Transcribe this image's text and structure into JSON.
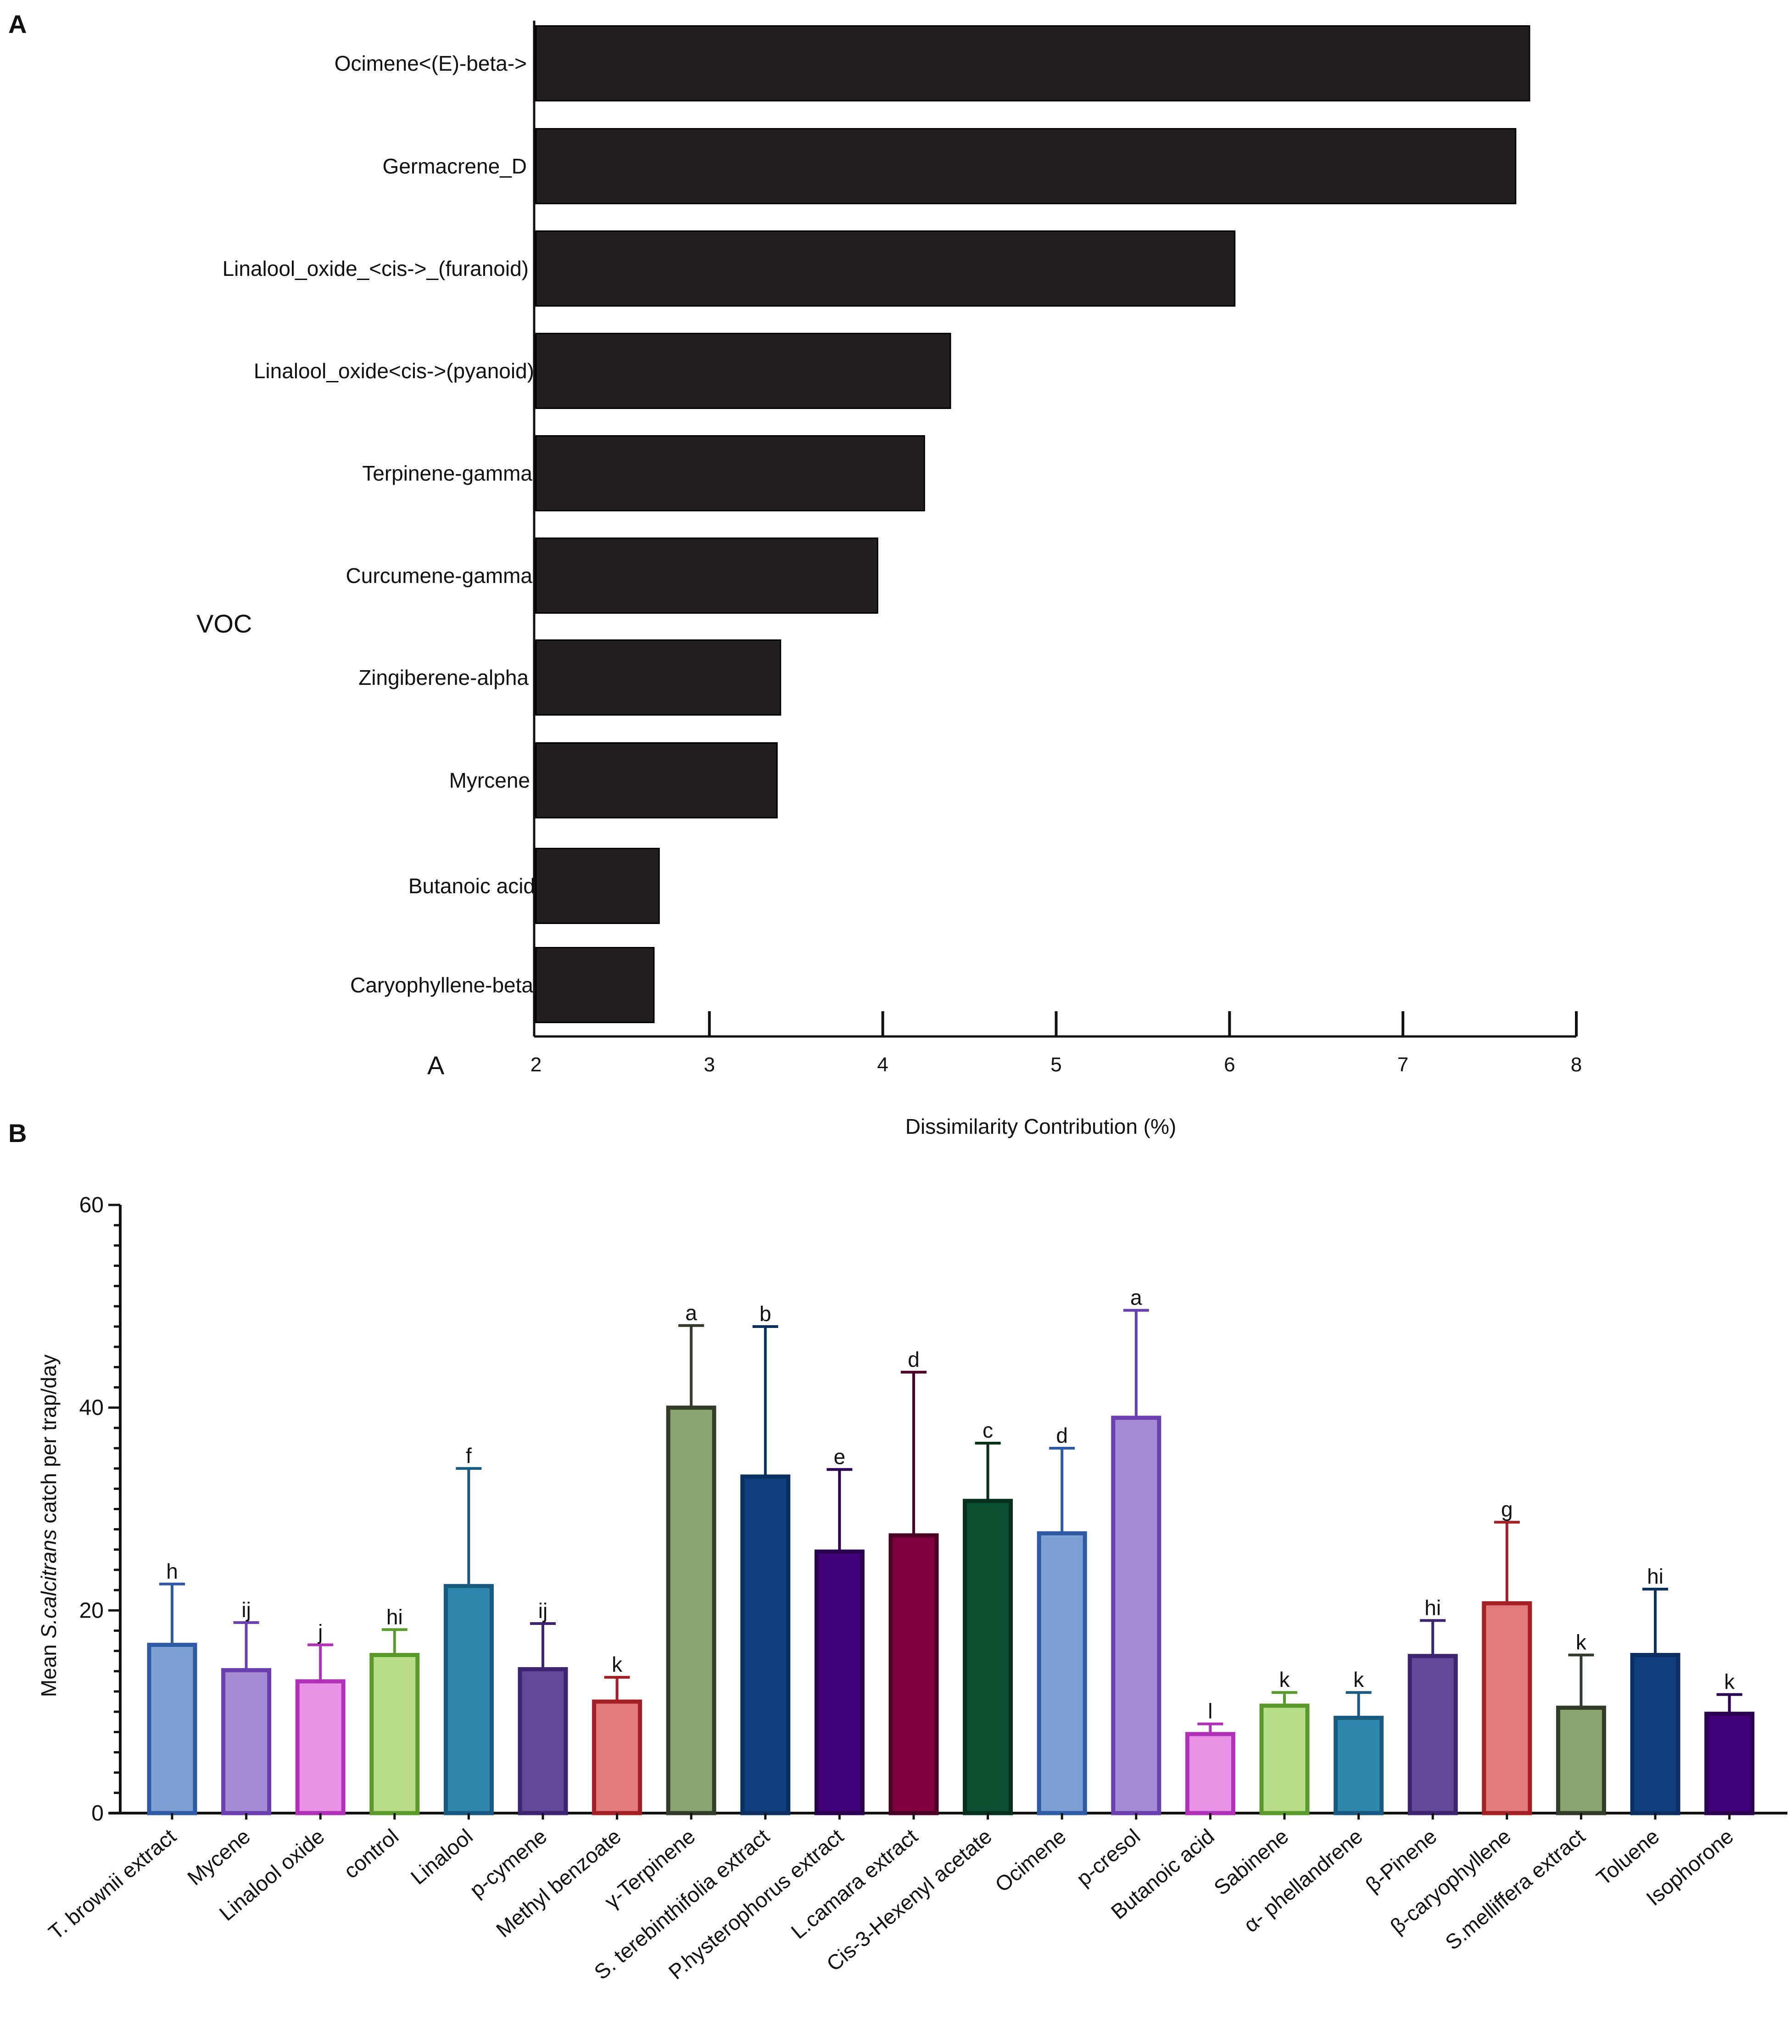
{
  "panelA": {
    "panel_letter": "A",
    "corner_label": "A",
    "bar_color": "#231f20",
    "chart_data": {
      "type": "bar",
      "orientation": "horizontal",
      "ylabel": "VOC",
      "xlabel": "Dissimilarity Contribution (%)",
      "xlim": [
        2,
        8
      ],
      "xticks": [
        2,
        3,
        4,
        5,
        6,
        7,
        8
      ],
      "categories": [
        "Ocimene<(E)-beta->",
        "Germacrene_D",
        "Linalool_oxide_<cis->_(furanoid)",
        "Linalool_oxide<cis->(pyanoid)",
        "Terpinene-gamma",
        "Curcumene-gamma",
        "Zingiberene-alpha",
        "Myrcene",
        "Butanoic acid",
        "Caryophyllene-beta"
      ],
      "values": [
        7.73,
        7.65,
        6.03,
        4.39,
        4.24,
        3.97,
        3.41,
        3.39,
        2.71,
        2.68
      ]
    }
  },
  "panelB": {
    "panel_letter": "B",
    "chart_data": {
      "type": "bar",
      "ylabel_prefix": "Mean ",
      "ylabel_species": "S.calcitrans",
      "ylabel_suffix": " catch per trap/day",
      "ylim": [
        0,
        60
      ],
      "yticks": [
        0,
        20,
        40,
        60
      ],
      "categories": [
        "T. brownii extract",
        "Mycene",
        "Linalool oxide",
        "control",
        "Linalool",
        "p-cymene",
        "Methyl benzoate",
        "γ-Terpinene",
        "S. terebinthifolia extract",
        "P.hysterophorus extract",
        "L.camara extract",
        "Cis-3-Hexenyl acetate",
        "Ocimene",
        "p-cresol",
        "Butanoic acid",
        "Sabinene",
        "α- phellandrene",
        "β-Pinene",
        "β-caryophyllene",
        "S.melliffera extract",
        "Toluene",
        "Isophorone"
      ],
      "values": [
        16.6,
        14.1,
        13.0,
        15.6,
        22.4,
        14.2,
        11.0,
        40.0,
        33.2,
        25.8,
        27.4,
        30.8,
        27.6,
        39.0,
        7.8,
        10.6,
        9.4,
        15.5,
        20.7,
        10.4,
        15.6,
        9.8
      ],
      "errors": [
        6.0,
        4.7,
        3.6,
        2.5,
        11.6,
        4.5,
        2.4,
        8.1,
        14.8,
        8.1,
        16.1,
        5.7,
        8.4,
        10.6,
        1.0,
        1.3,
        2.5,
        3.5,
        8.0,
        5.2,
        6.5,
        1.9
      ],
      "letters": [
        "h",
        "ij",
        "j",
        "hi",
        "f",
        "ij",
        "k",
        "a",
        "b",
        "e",
        "d",
        "c",
        "d",
        "a",
        "l",
        "k",
        "k",
        "hi",
        "g",
        "k",
        "hi",
        "k"
      ],
      "fills": [
        "#7ba0d4",
        "#a48bd4",
        "#e994e8",
        "#b8de8a",
        "#2e87ac",
        "#62479a",
        "#e07a7c",
        "#8aa56e",
        "#0d3f7f",
        "#420078",
        "#7f0040",
        "#0a5030",
        "#7ba0d4",
        "#a48bd4",
        "#e994e8",
        "#b8de8a",
        "#2e87ac",
        "#62479a",
        "#e07a7c",
        "#8aa56e",
        "#0d3f7f",
        "#420078"
      ],
      "strokes": [
        "#2f5aa6",
        "#6a3fb0",
        "#b030b8",
        "#5a9a2a",
        "#1b5a80",
        "#3c2470",
        "#a52024",
        "#333b2a",
        "#0a2f60",
        "#2b0050",
        "#4a0024",
        "#06301c",
        "#2f5aa6",
        "#6a3fb0",
        "#b030b8",
        "#5a9a2a",
        "#1b5a80",
        "#3c2470",
        "#a52024",
        "#333b2a",
        "#0a2f60",
        "#2b0050"
      ]
    }
  }
}
